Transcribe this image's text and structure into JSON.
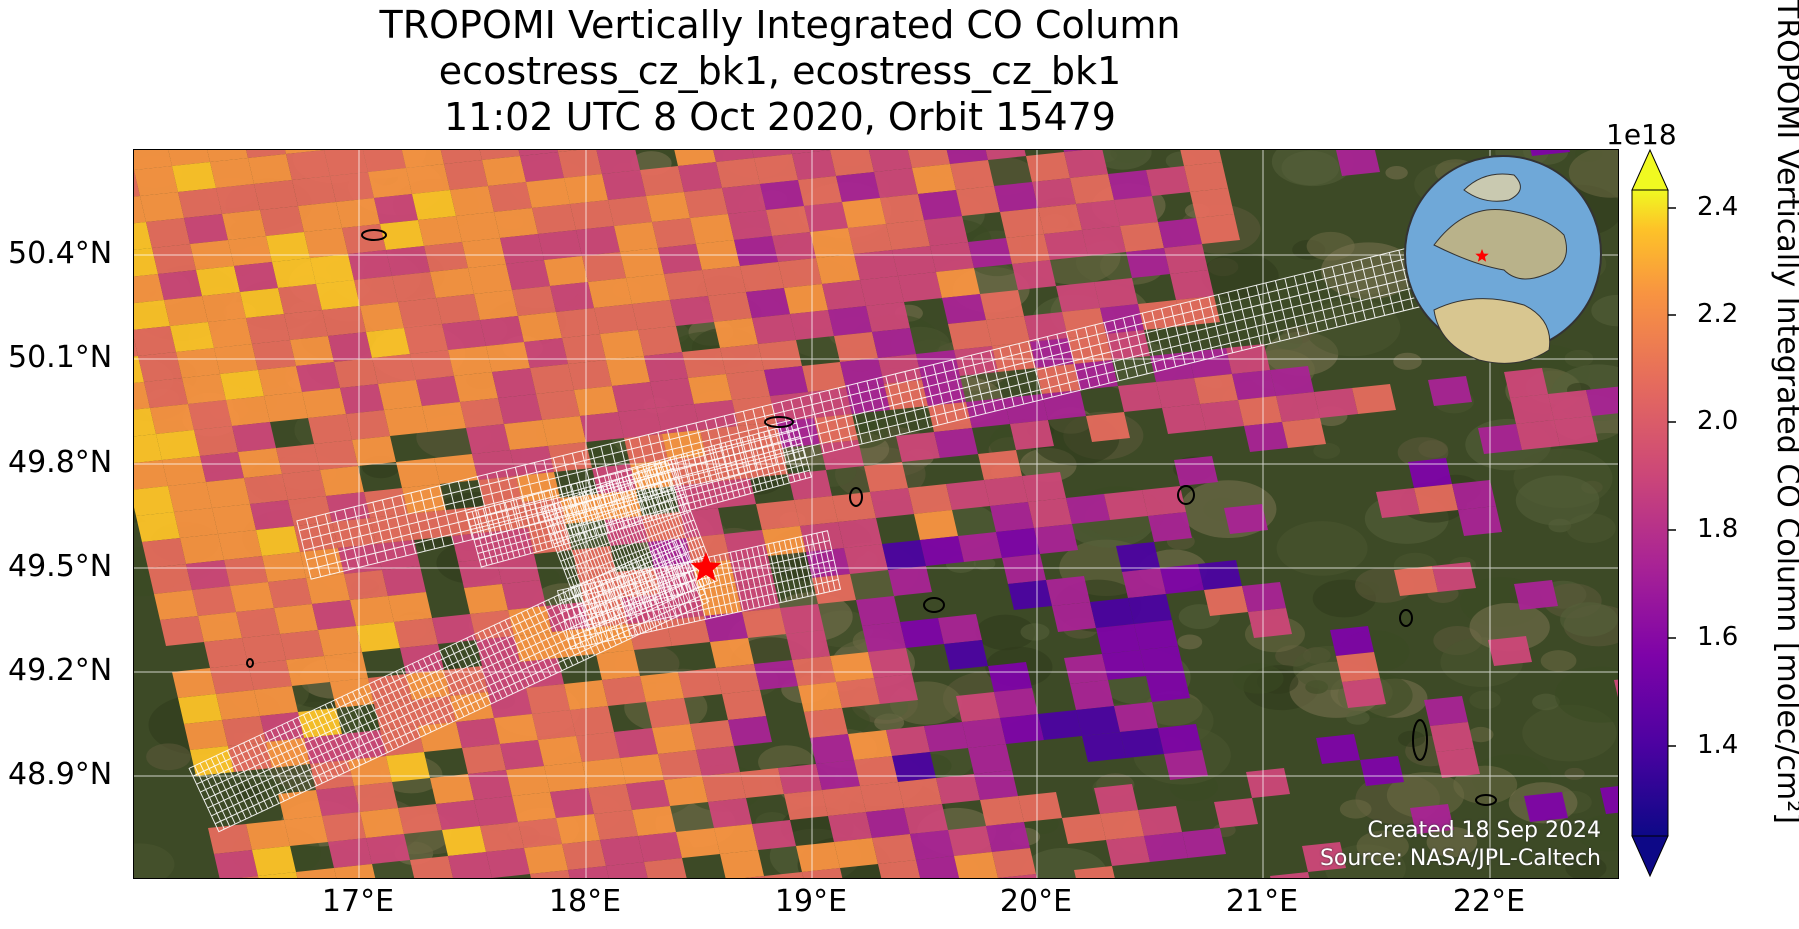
{
  "title": {
    "line1": "TROPOMI Vertically Integrated CO Column",
    "line2": "ecostress_cz_bk1, ecostress_cz_bk1",
    "line3": "11:02 UTC 8 Oct 2020, Orbit 15479"
  },
  "axes": {
    "lat_ticks": [
      "50.4°N",
      "50.1°N",
      "49.8°N",
      "49.5°N",
      "49.2°N",
      "48.9°N"
    ],
    "lon_ticks": [
      "17°E",
      "18°E",
      "19°E",
      "20°E",
      "21°E",
      "22°E"
    ]
  },
  "colorbar": {
    "label": "TROPOMI Vertically Integrated CO Column [molec/cm²]",
    "exponent": "1e18",
    "ticks": [
      "2.4",
      "2.2",
      "2.0",
      "1.8",
      "1.6",
      "1.4"
    ],
    "colormap": "plasma",
    "extend": "both"
  },
  "credits": {
    "created": "Created 18 Sep 2024",
    "source": "Source: NASA/JPL-Caltech"
  },
  "map": {
    "basemap": "satellite imagery",
    "target_marker": "red star",
    "target_lon": 18.53,
    "target_lat": 49.5,
    "footprint_outline_color": "#ffffff",
    "gridline_color": "#ffffff",
    "inset_globe": "orthographic globe centered on Europe with red star marker"
  }
}
